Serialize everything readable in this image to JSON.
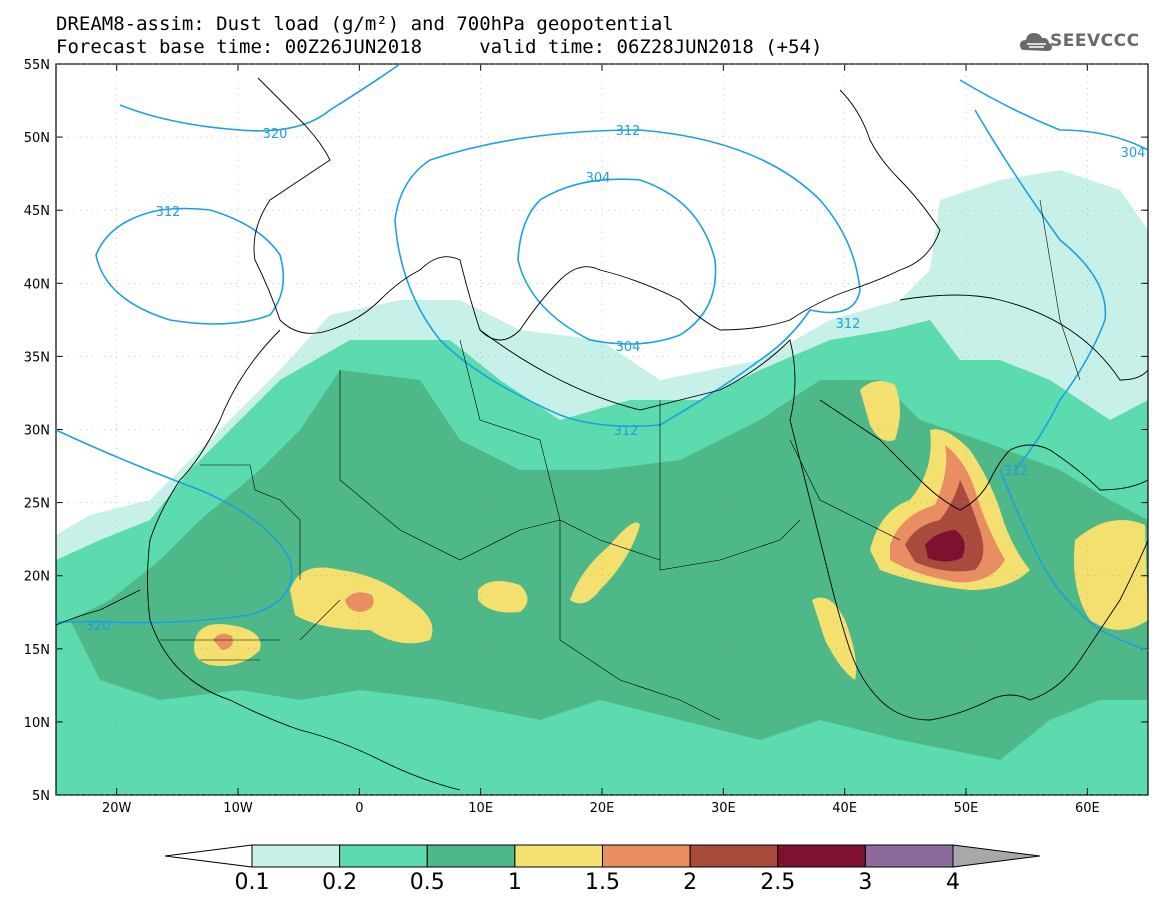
{
  "header": {
    "title_line1": "DREAM8-assim: Dust load (g/m²) and 700hPa geopotential",
    "title_line2": "Forecast base time: 00Z26JUN2018     valid time: 06Z28JUN2018 (+54)"
  },
  "logo": {
    "text": "SEEVCCC",
    "icon": "cloud-logo-icon"
  },
  "axes": {
    "lat_labels": [
      "55N",
      "50N",
      "45N",
      "40N",
      "35N",
      "30N",
      "25N",
      "20N",
      "15N",
      "10N",
      "5N"
    ],
    "lon_labels": [
      "20W",
      "10W",
      "0",
      "10E",
      "20E",
      "30E",
      "40E",
      "50E",
      "60E"
    ]
  },
  "contours": {
    "color": "#1ba1e2",
    "labels": [
      "320",
      "312",
      "312",
      "304",
      "304",
      "312",
      "312",
      "312",
      "304",
      "320"
    ]
  },
  "colorbar": {
    "levels": [
      "0.1",
      "0.2",
      "0.5",
      "1",
      "1.5",
      "2",
      "2.5",
      "3",
      "4"
    ],
    "colors": [
      "#c7f0e8",
      "#5cdcae",
      "#4fb889",
      "#f4e06f",
      "#e88e62",
      "#a84a3c",
      "#7f1030",
      "#8c6a9e"
    ],
    "under_color": "#ffffff",
    "over_color": "#a8a8a8"
  }
}
